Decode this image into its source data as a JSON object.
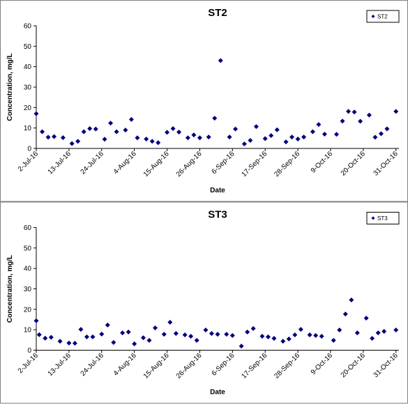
{
  "chart_data": [
    {
      "type": "scatter",
      "title": "ST2",
      "xlabel": "Date",
      "ylabel": "Concentration, mg/L",
      "legend": "top-right",
      "x": [
        "2016-07-02",
        "2016-07-04",
        "2016-07-06",
        "2016-07-08",
        "2016-07-11",
        "2016-07-14",
        "2016-07-16",
        "2016-07-18",
        "2016-07-20",
        "2016-07-22",
        "2016-07-25",
        "2016-07-27",
        "2016-07-29",
        "2016-08-01",
        "2016-08-03",
        "2016-08-05",
        "2016-08-08",
        "2016-08-10",
        "2016-08-12",
        "2016-08-15",
        "2016-08-17",
        "2016-08-19",
        "2016-08-22",
        "2016-08-24",
        "2016-08-26",
        "2016-08-29",
        "2016-08-31",
        "2016-09-02",
        "2016-09-05",
        "2016-09-07",
        "2016-09-10",
        "2016-09-12",
        "2016-09-14",
        "2016-09-17",
        "2016-09-19",
        "2016-09-21",
        "2016-09-24",
        "2016-09-26",
        "2016-09-28",
        "2016-09-30",
        "2016-10-03",
        "2016-10-05",
        "2016-10-07",
        "2016-10-11",
        "2016-10-13",
        "2016-10-15",
        "2016-10-17",
        "2016-10-19",
        "2016-10-22",
        "2016-10-24",
        "2016-10-26",
        "2016-10-28",
        "2016-10-31"
      ],
      "series": [
        {
          "name": "ST2",
          "color": "#000080",
          "values": [
            17,
            8.2,
            5.5,
            5.8,
            5.3,
            2.4,
            3.5,
            8.2,
            9.7,
            9.5,
            4.5,
            12.4,
            8.2,
            9,
            14.2,
            5.2,
            4.6,
            3.5,
            2.8,
            7.9,
            9.7,
            8,
            5.2,
            6.6,
            5.2,
            5.6,
            14.8,
            43,
            5.6,
            9.5,
            2.2,
            3.9,
            10.7,
            4.8,
            6.3,
            9.1,
            3.2,
            5.6,
            4.6,
            5.6,
            8.2,
            11.7,
            7,
            6.9,
            13.4,
            18.1,
            17.8,
            13.3,
            16.3,
            5.5,
            7.2,
            9.6,
            18.1
          ]
        }
      ],
      "xlim": [
        "2016-07-02",
        "2016-11-01"
      ],
      "xticks": [
        {
          "value": "2016-07-02",
          "label": "2-Jul-16"
        },
        {
          "value": "2016-07-13",
          "label": "13-Jul-16"
        },
        {
          "value": "2016-07-24",
          "label": "24-Jul-16"
        },
        {
          "value": "2016-08-04",
          "label": "4-Aug-16"
        },
        {
          "value": "2016-08-15",
          "label": "15-Aug-16"
        },
        {
          "value": "2016-08-26",
          "label": "26-Aug-16"
        },
        {
          "value": "2016-09-06",
          "label": "6-Sep-16"
        },
        {
          "value": "2016-09-17",
          "label": "17-Sep-16"
        },
        {
          "value": "2016-09-28",
          "label": "28-Sep-16"
        },
        {
          "value": "2016-10-09",
          "label": "9-Oct-16"
        },
        {
          "value": "2016-10-20",
          "label": "20-Oct-16"
        },
        {
          "value": "2016-10-31",
          "label": "31-Oct-16"
        }
      ],
      "ylim": [
        0,
        60
      ],
      "yticks": [
        0,
        10,
        20,
        30,
        40,
        50,
        60
      ]
    },
    {
      "type": "scatter",
      "title": "ST3",
      "xlabel": "Date",
      "ylabel": "Concentration, mg/L",
      "legend": "top-right",
      "x": [
        "2016-07-02",
        "2016-07-03",
        "2016-07-05",
        "2016-07-07",
        "2016-07-10",
        "2016-07-13",
        "2016-07-15",
        "2016-07-17",
        "2016-07-19",
        "2016-07-21",
        "2016-07-24",
        "2016-07-26",
        "2016-07-28",
        "2016-07-31",
        "2016-08-02",
        "2016-08-04",
        "2016-08-07",
        "2016-08-09",
        "2016-08-11",
        "2016-08-14",
        "2016-08-16",
        "2016-08-18",
        "2016-08-21",
        "2016-08-23",
        "2016-08-25",
        "2016-08-28",
        "2016-08-30",
        "2016-09-01",
        "2016-09-04",
        "2016-09-06",
        "2016-09-09",
        "2016-09-11",
        "2016-09-13",
        "2016-09-16",
        "2016-09-18",
        "2016-09-20",
        "2016-09-23",
        "2016-09-25",
        "2016-09-27",
        "2016-09-29",
        "2016-10-02",
        "2016-10-04",
        "2016-10-06",
        "2016-10-10",
        "2016-10-12",
        "2016-10-14",
        "2016-10-16",
        "2016-10-18",
        "2016-10-21",
        "2016-10-23",
        "2016-10-25",
        "2016-10-27",
        "2016-10-31"
      ],
      "series": [
        {
          "name": "ST3",
          "color": "#000080",
          "values": [
            14.4,
            7.6,
            5.9,
            6.3,
            4.4,
            3.5,
            3.4,
            10.2,
            6.5,
            6.5,
            7.9,
            12.3,
            3.8,
            8.5,
            8.9,
            3.1,
            6.1,
            4.8,
            10.9,
            7.8,
            13.7,
            8.2,
            7.5,
            6.8,
            4.8,
            9.9,
            8.2,
            7.8,
            7.8,
            7.2,
            2,
            8.9,
            10.6,
            6.8,
            6.5,
            5.8,
            4.4,
            5.5,
            7.5,
            10.2,
            7.5,
            7.2,
            6.8,
            4.8,
            9.9,
            17.7,
            24.6,
            8.5,
            15.7,
            5.8,
            8.5,
            9.2,
            9.9
          ]
        }
      ],
      "xlim": [
        "2016-07-02",
        "2016-11-01"
      ],
      "xticks": [
        {
          "value": "2016-07-02",
          "label": "2-Jul-16"
        },
        {
          "value": "2016-07-13",
          "label": "13-Jul-16"
        },
        {
          "value": "2016-07-24",
          "label": "24-Jul-16"
        },
        {
          "value": "2016-08-04",
          "label": "4-Aug-16"
        },
        {
          "value": "2016-08-15",
          "label": "15-Aug-16"
        },
        {
          "value": "2016-08-26",
          "label": "26-Aug-16"
        },
        {
          "value": "2016-09-06",
          "label": "6-Sep-16"
        },
        {
          "value": "2016-09-17",
          "label": "17-Sep-16"
        },
        {
          "value": "2016-09-28",
          "label": "28-Sep-16"
        },
        {
          "value": "2016-10-09",
          "label": "9-Oct-16"
        },
        {
          "value": "2016-10-20",
          "label": "20-Oct-16"
        },
        {
          "value": "2016-10-31",
          "label": "31-Oct-16"
        }
      ],
      "ylim": [
        0,
        60
      ],
      "yticks": [
        0,
        10,
        20,
        30,
        40,
        50,
        60
      ]
    }
  ]
}
